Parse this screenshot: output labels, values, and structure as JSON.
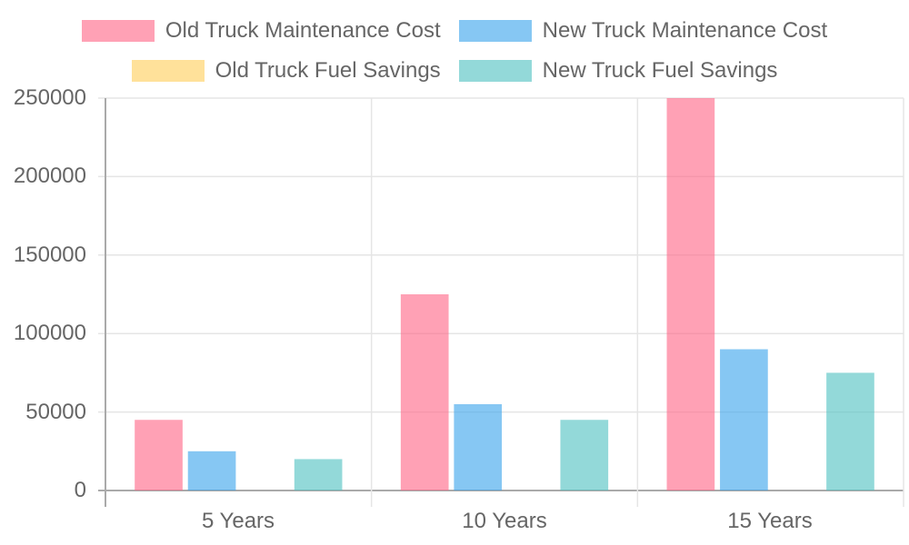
{
  "chart_data": {
    "type": "bar",
    "title": "",
    "xlabel": "",
    "ylabel": "",
    "categories": [
      "5 Years",
      "10 Years",
      "15 Years"
    ],
    "series": [
      {
        "name": "Old Truck Maintenance Cost",
        "color": "#ff6384",
        "values": [
          45000,
          125000,
          250000
        ]
      },
      {
        "name": "New Truck Maintenance Cost",
        "color": "#36a2eb",
        "values": [
          25000,
          55000,
          90000
        ]
      },
      {
        "name": "Old Truck Fuel Savings",
        "color": "#ffcd56",
        "values": [
          0,
          0,
          0
        ]
      },
      {
        "name": "New Truck Fuel Savings",
        "color": "#4bc0c0",
        "values": [
          20000,
          45000,
          75000
        ]
      }
    ],
    "ylim": [
      0,
      250000
    ],
    "yticks": [
      "250000",
      "200000",
      "150000",
      "100000",
      "50000",
      "0"
    ],
    "grid": true,
    "legend_position": "top"
  },
  "legend": [
    {
      "label": "Old Truck Maintenance Cost",
      "color": "#ff6384"
    },
    {
      "label": "New Truck Maintenance Cost",
      "color": "#36a2eb"
    },
    {
      "label": "Old Truck Fuel Savings",
      "color": "#ffcd56"
    },
    {
      "label": "New Truck Fuel Savings",
      "color": "#4bc0c0"
    }
  ]
}
